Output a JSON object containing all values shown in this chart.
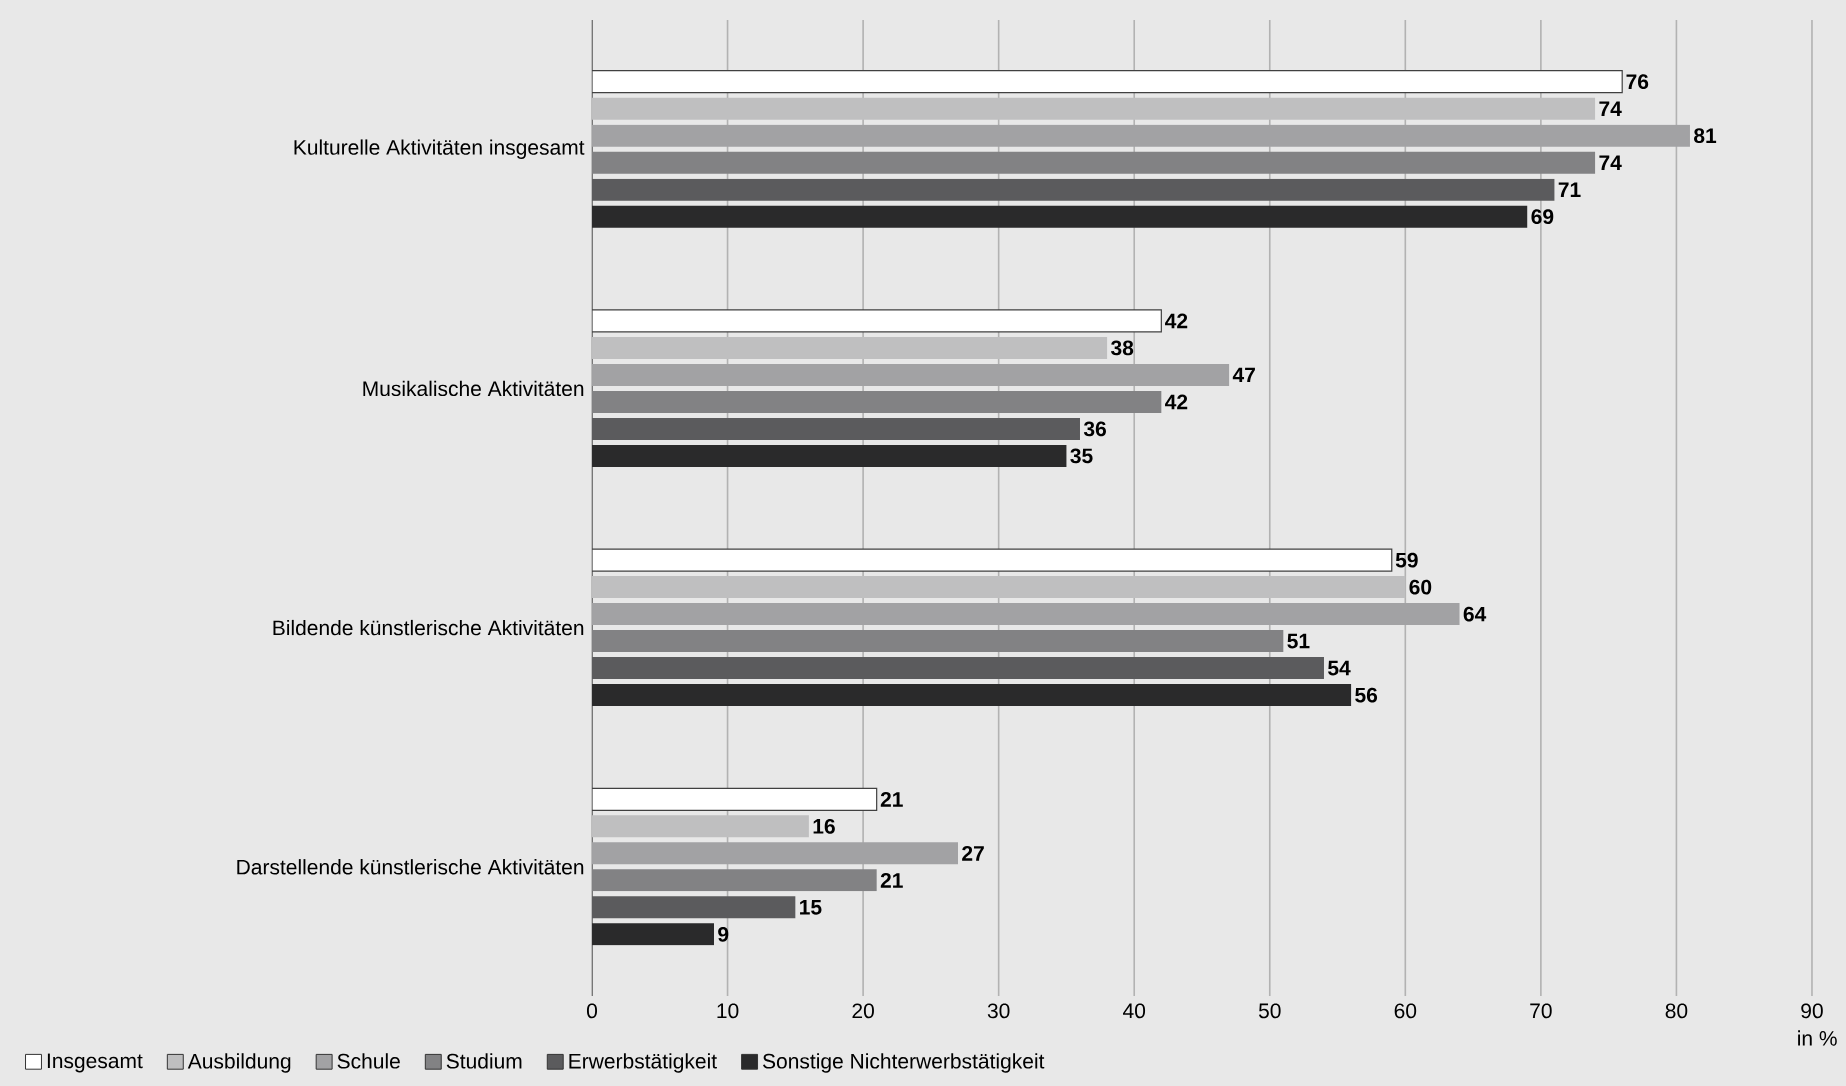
{
  "chart_data": {
    "type": "bar",
    "orientation": "horizontal",
    "xlabel": "in %",
    "categories": [
      "Kulturelle Aktivitäten insgesamt",
      "Musikalische Aktivitäten",
      "Bildende künstlerische Aktivitäten",
      "Darstellende künstlerische Aktivitäten"
    ],
    "series": [
      {
        "name": "Insgesamt",
        "color": "#ffffff",
        "values": [
          76,
          42,
          59,
          21
        ]
      },
      {
        "name": "Ausbildung",
        "color": "#bfbfc0",
        "values": [
          74,
          38,
          60,
          16
        ]
      },
      {
        "name": "Schule",
        "color": "#a2a2a4",
        "values": [
          81,
          47,
          64,
          27
        ]
      },
      {
        "name": "Studium",
        "color": "#828284",
        "values": [
          74,
          42,
          51,
          21
        ]
      },
      {
        "name": "Erwerbstätigkeit",
        "color": "#5b5b5d",
        "values": [
          71,
          36,
          54,
          15
        ]
      },
      {
        "name": "Sonstige Nichterwerbstätigkeit",
        "color": "#2a2a2b",
        "values": [
          69,
          35,
          56,
          9
        ]
      }
    ],
    "xlim": [
      0,
      90
    ],
    "xticks": [
      0,
      10,
      20,
      30,
      40,
      50,
      60,
      70,
      80,
      90
    ],
    "grid": "x",
    "legend": "bottom",
    "data_labels": true
  }
}
